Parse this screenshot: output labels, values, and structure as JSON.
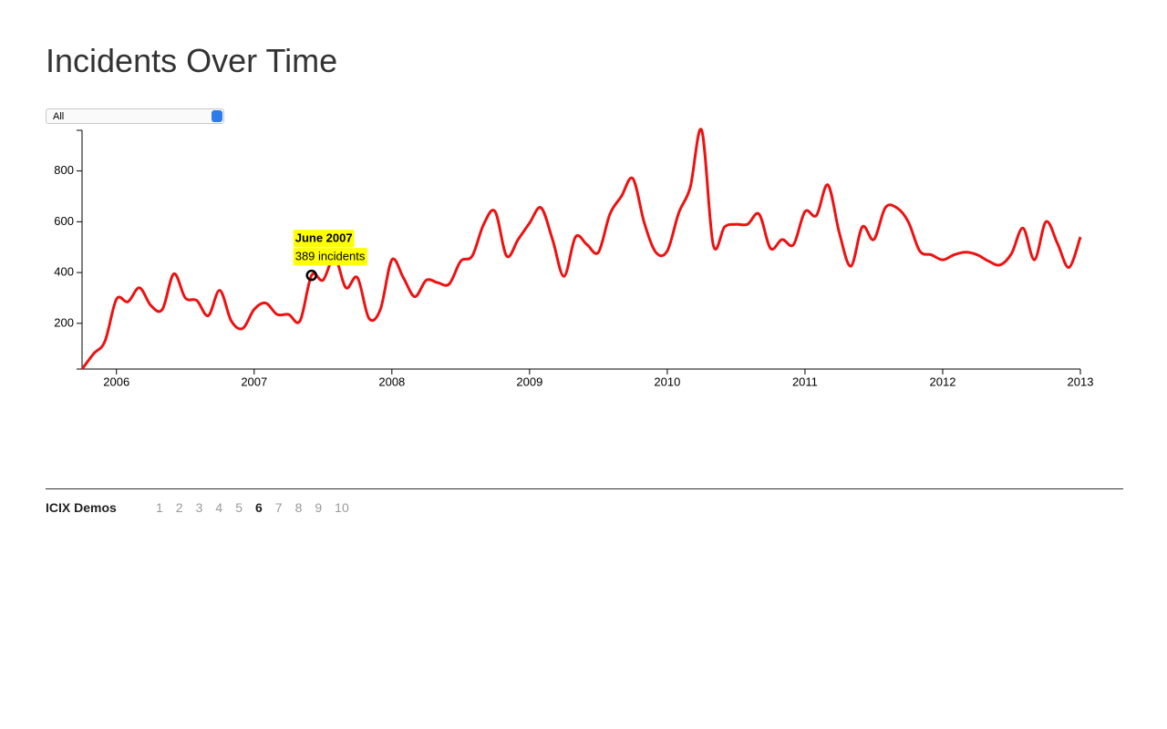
{
  "header": {
    "title": "Incidents Over Time"
  },
  "filter": {
    "selected": "All"
  },
  "chart_data": {
    "type": "line",
    "x": [
      "2005-10",
      "2005-11",
      "2005-12",
      "2006-01",
      "2006-02",
      "2006-03",
      "2006-04",
      "2006-05",
      "2006-06",
      "2006-07",
      "2006-08",
      "2006-09",
      "2006-10",
      "2006-11",
      "2006-12",
      "2007-01",
      "2007-02",
      "2007-03",
      "2007-04",
      "2007-05",
      "2007-06",
      "2007-07",
      "2007-08",
      "2007-09",
      "2007-10",
      "2007-11",
      "2007-12",
      "2008-01",
      "2008-02",
      "2008-03",
      "2008-04",
      "2008-05",
      "2008-06",
      "2008-07",
      "2008-08",
      "2008-09",
      "2008-10",
      "2008-11",
      "2008-12",
      "2009-01",
      "2009-02",
      "2009-03",
      "2009-04",
      "2009-05",
      "2009-06",
      "2009-07",
      "2009-08",
      "2009-09",
      "2009-10",
      "2009-11",
      "2009-12",
      "2010-01",
      "2010-02",
      "2010-03",
      "2010-04",
      "2010-05",
      "2010-06",
      "2010-07",
      "2010-08",
      "2010-09",
      "2010-10",
      "2010-11",
      "2010-12",
      "2011-01",
      "2011-02",
      "2011-03",
      "2011-04",
      "2011-05",
      "2011-06",
      "2011-07",
      "2011-08",
      "2011-09",
      "2011-10",
      "2011-11",
      "2011-12",
      "2012-01",
      "2012-02",
      "2012-03",
      "2012-04",
      "2012-05",
      "2012-06",
      "2012-07",
      "2012-08",
      "2012-09",
      "2012-10",
      "2012-11",
      "2012-12",
      "2013-01"
    ],
    "series": [
      {
        "color": "#ee1111",
        "values": [
          20,
          80,
          130,
          295,
          285,
          340,
          270,
          255,
          395,
          300,
          290,
          230,
          330,
          210,
          180,
          255,
          280,
          235,
          235,
          210,
          389,
          370,
          460,
          340,
          380,
          220,
          255,
          450,
          380,
          305,
          370,
          360,
          355,
          445,
          465,
          590,
          640,
          465,
          530,
          595,
          655,
          530,
          385,
          540,
          510,
          480,
          630,
          700,
          770,
          595,
          480,
          485,
          635,
          735,
          960,
          510,
          580,
          590,
          590,
          630,
          495,
          530,
          510,
          640,
          625,
          745,
          555,
          425,
          580,
          530,
          655,
          655,
          600,
          485,
          470,
          450,
          470,
          480,
          470,
          445,
          430,
          475,
          575,
          450,
          600,
          515,
          420,
          540
        ]
      }
    ],
    "xlim": [
      "2005-10",
      "2013-01"
    ],
    "xticks": [
      {
        "value": "2006-01",
        "label": "2006"
      },
      {
        "value": "2007-01",
        "label": "2007"
      },
      {
        "value": "2008-01",
        "label": "2008"
      },
      {
        "value": "2009-01",
        "label": "2009"
      },
      {
        "value": "2010-01",
        "label": "2010"
      },
      {
        "value": "2011-01",
        "label": "2011"
      },
      {
        "value": "2012-01",
        "label": "2012"
      },
      {
        "value": "2013-01",
        "label": "2013"
      }
    ],
    "ylim": [
      20,
      960
    ],
    "yticks": [
      200,
      400,
      600,
      800
    ],
    "tooltip": {
      "index": 20,
      "title": "June 2007",
      "text": "389 incidents"
    }
  },
  "footer": {
    "brand": "ICIX Demos",
    "pages": [
      "1",
      "2",
      "3",
      "4",
      "5",
      "6",
      "7",
      "8",
      "9",
      "10"
    ],
    "current": "6"
  }
}
